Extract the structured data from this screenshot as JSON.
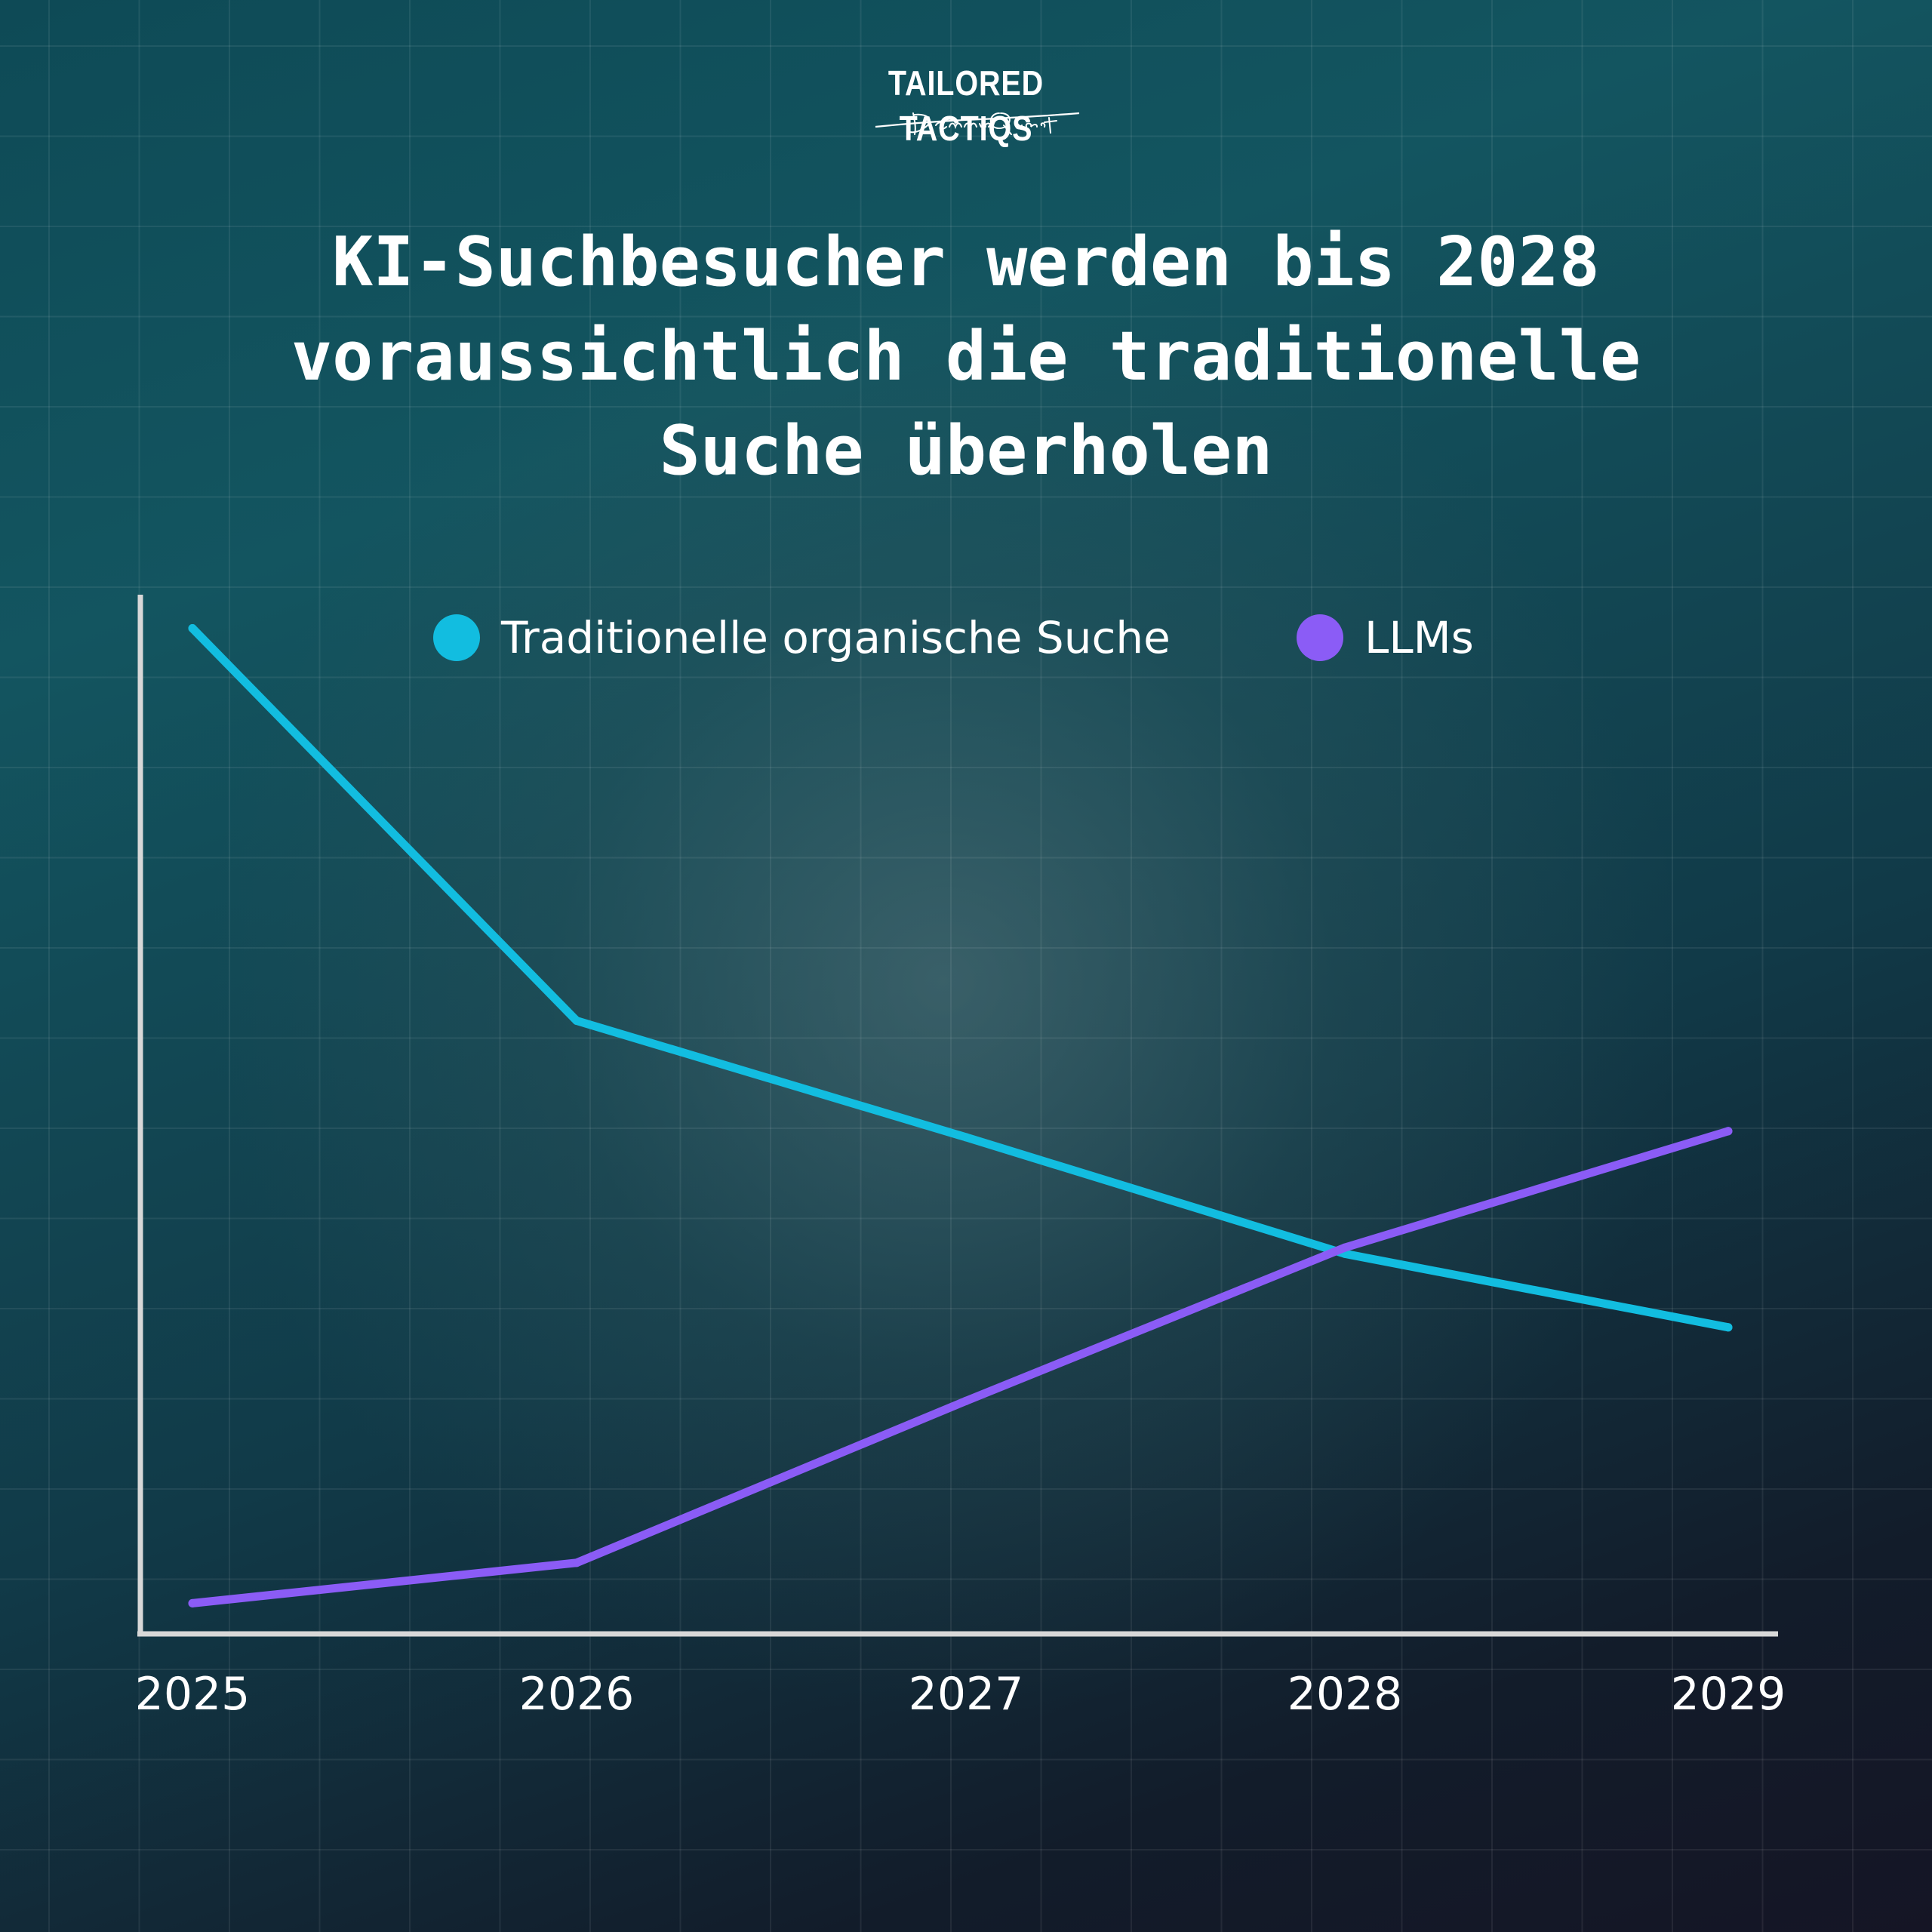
{
  "logo": {
    "text": "TAILORED TACTIQS",
    "signature": "Dennis Quast"
  },
  "title_lines": [
    "KI-Suchbesucher werden bis 2028",
    "voraussichtlich die traditionelle",
    "Suche überholen"
  ],
  "chart_data": {
    "type": "line",
    "title": "KI-Suchbesucher werden bis 2028 voraussichtlich die traditionelle Suche überholen",
    "xlabel": "",
    "ylabel": "",
    "x": [
      "2025",
      "2026",
      "2027",
      "2028",
      "2029"
    ],
    "ylim": [
      0,
      100
    ],
    "grid": true,
    "legend_position": "top",
    "series": [
      {
        "name": "Traditionelle organische Suche",
        "color": "#12bde0",
        "values": [
          82,
          50,
          40.5,
          31,
          25
        ]
      },
      {
        "name": "LLMs",
        "color": "#8b5cf6",
        "values": [
          2.5,
          5.8,
          19,
          31.5,
          41
        ]
      }
    ]
  }
}
